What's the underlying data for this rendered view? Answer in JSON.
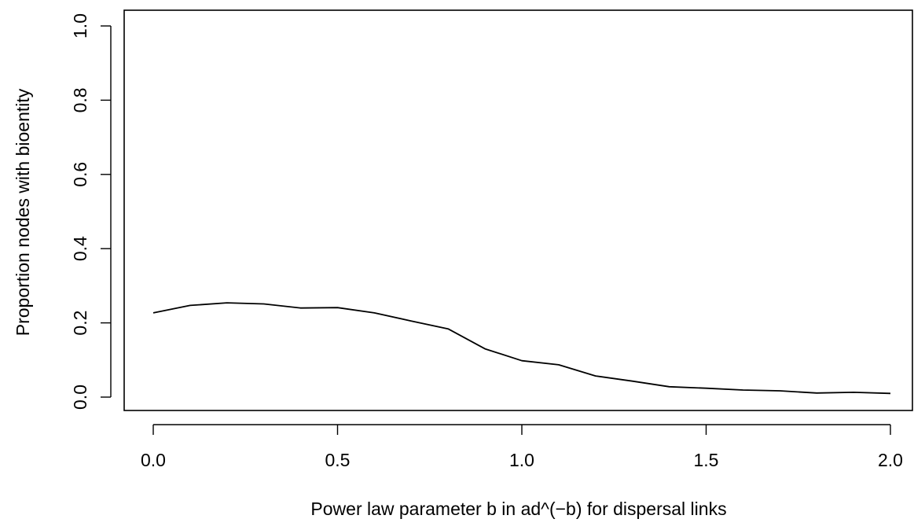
{
  "chart_data": {
    "type": "line",
    "title": "",
    "xlabel": "Power law parameter b in ad^(−b) for dispersal links",
    "ylabel": "Proportion nodes with bioentity",
    "xlim": [
      0.0,
      2.0
    ],
    "ylim": [
      0.0,
      1.0
    ],
    "x_ticks": [
      0.0,
      0.5,
      1.0,
      1.5,
      2.0
    ],
    "x_tick_labels": [
      "0.0",
      "0.5",
      "1.0",
      "1.5",
      "2.0"
    ],
    "y_ticks": [
      0.0,
      0.2,
      0.4,
      0.6,
      0.8,
      1.0
    ],
    "y_tick_labels": [
      "0.0",
      "0.2",
      "0.4",
      "0.6",
      "0.8",
      "1.0"
    ],
    "grid": false,
    "line_color": "#000000",
    "series": [
      {
        "x": [
          0.0,
          0.1,
          0.2,
          0.3,
          0.4,
          0.5,
          0.6,
          0.7,
          0.8,
          0.9,
          1.0,
          1.1,
          1.2,
          1.3,
          1.4,
          1.5,
          1.6,
          1.7,
          1.8,
          1.9,
          2.0
        ],
        "y": [
          0.227,
          0.247,
          0.254,
          0.251,
          0.24,
          0.241,
          0.227,
          0.205,
          0.184,
          0.13,
          0.098,
          0.087,
          0.057,
          0.043,
          0.028,
          0.024,
          0.019,
          0.017,
          0.011,
          0.013,
          0.01
        ]
      }
    ]
  }
}
